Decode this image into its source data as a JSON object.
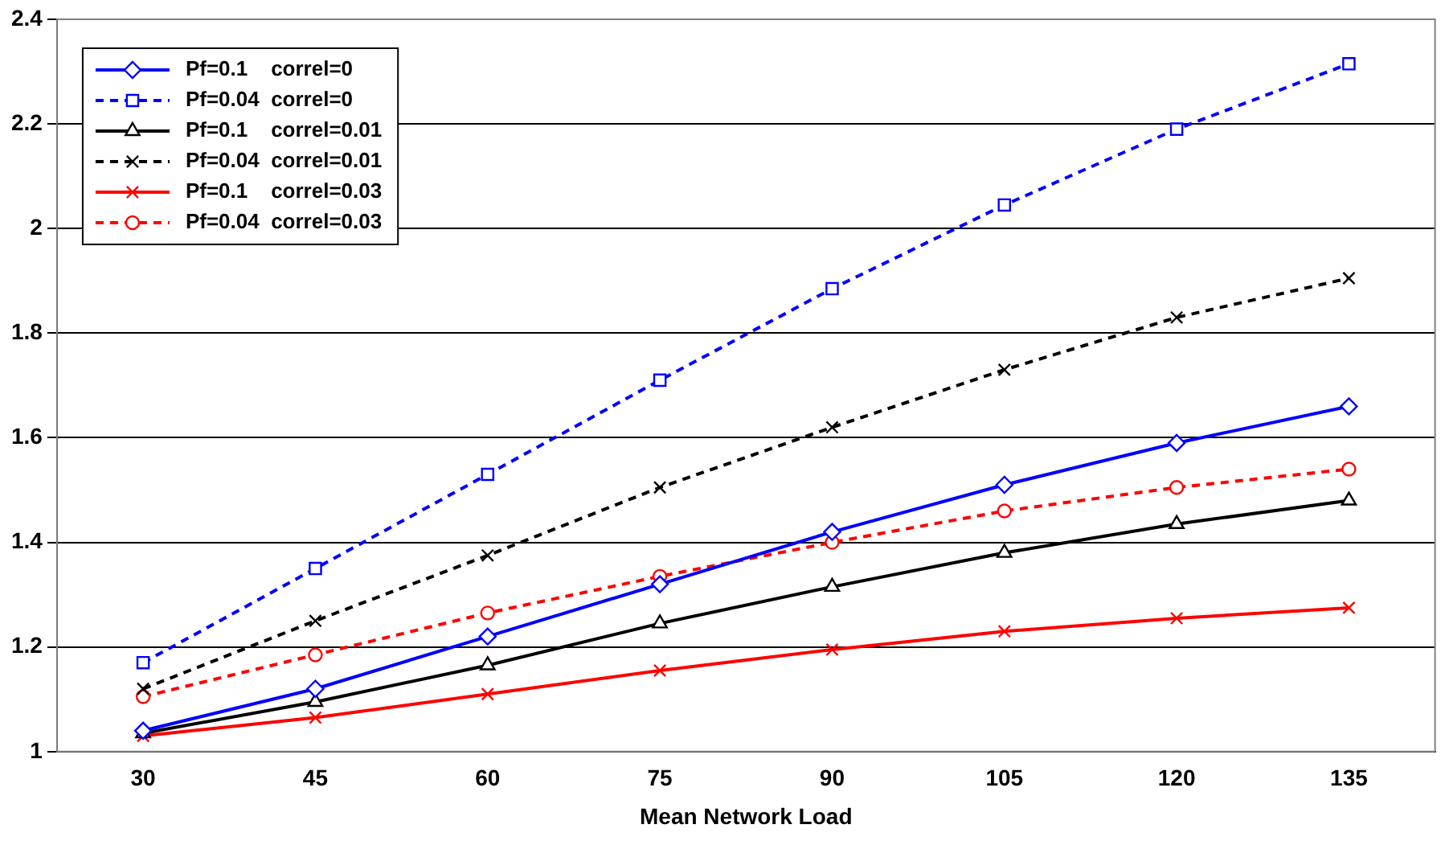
{
  "chart_data": {
    "type": "line",
    "xlabel": "Mean Network Load",
    "categories": [
      "30",
      "45",
      "60",
      "75",
      "90",
      "105",
      "120",
      "135"
    ],
    "ylim": [
      1,
      2.4
    ],
    "yticks": [
      1,
      1.2,
      1.4,
      1.6,
      1.8,
      2,
      2.2,
      2.4
    ],
    "grid": "y",
    "legend": "top left",
    "series": [
      {
        "name": "Pf=0.1    correl=0",
        "color": "#0000ff",
        "marker": "diamond",
        "line_style": "solid",
        "values": [
          1.04,
          1.12,
          1.22,
          1.32,
          1.42,
          1.51,
          1.59,
          1.66
        ]
      },
      {
        "name": "Pf=0.04  correl=0",
        "color": "#0000ff",
        "marker": "square",
        "line_style": "dashed",
        "values": [
          1.17,
          1.35,
          1.53,
          1.71,
          1.885,
          2.045,
          2.19,
          2.315
        ]
      },
      {
        "name": "Pf=0.1    correl=0.01",
        "color": "#000000",
        "marker": "triangle",
        "line_style": "solid",
        "values": [
          1.035,
          1.095,
          1.165,
          1.245,
          1.315,
          1.38,
          1.435,
          1.48
        ]
      },
      {
        "name": "Pf=0.04  correl=0.01",
        "color": "#000000",
        "marker": "cross",
        "line_style": "dashed",
        "values": [
          1.12,
          1.25,
          1.375,
          1.505,
          1.62,
          1.73,
          1.83,
          1.905
        ]
      },
      {
        "name": "Pf=0.1    correl=0.03",
        "color": "#ff0000",
        "marker": "cross",
        "line_style": "solid",
        "values": [
          1.03,
          1.065,
          1.11,
          1.155,
          1.195,
          1.23,
          1.255,
          1.275
        ]
      },
      {
        "name": "Pf=0.04  correl=0.03",
        "color": "#ff0000",
        "marker": "circle",
        "line_style": "dashed",
        "values": [
          1.105,
          1.185,
          1.265,
          1.335,
          1.4,
          1.46,
          1.505,
          1.54
        ]
      }
    ]
  }
}
